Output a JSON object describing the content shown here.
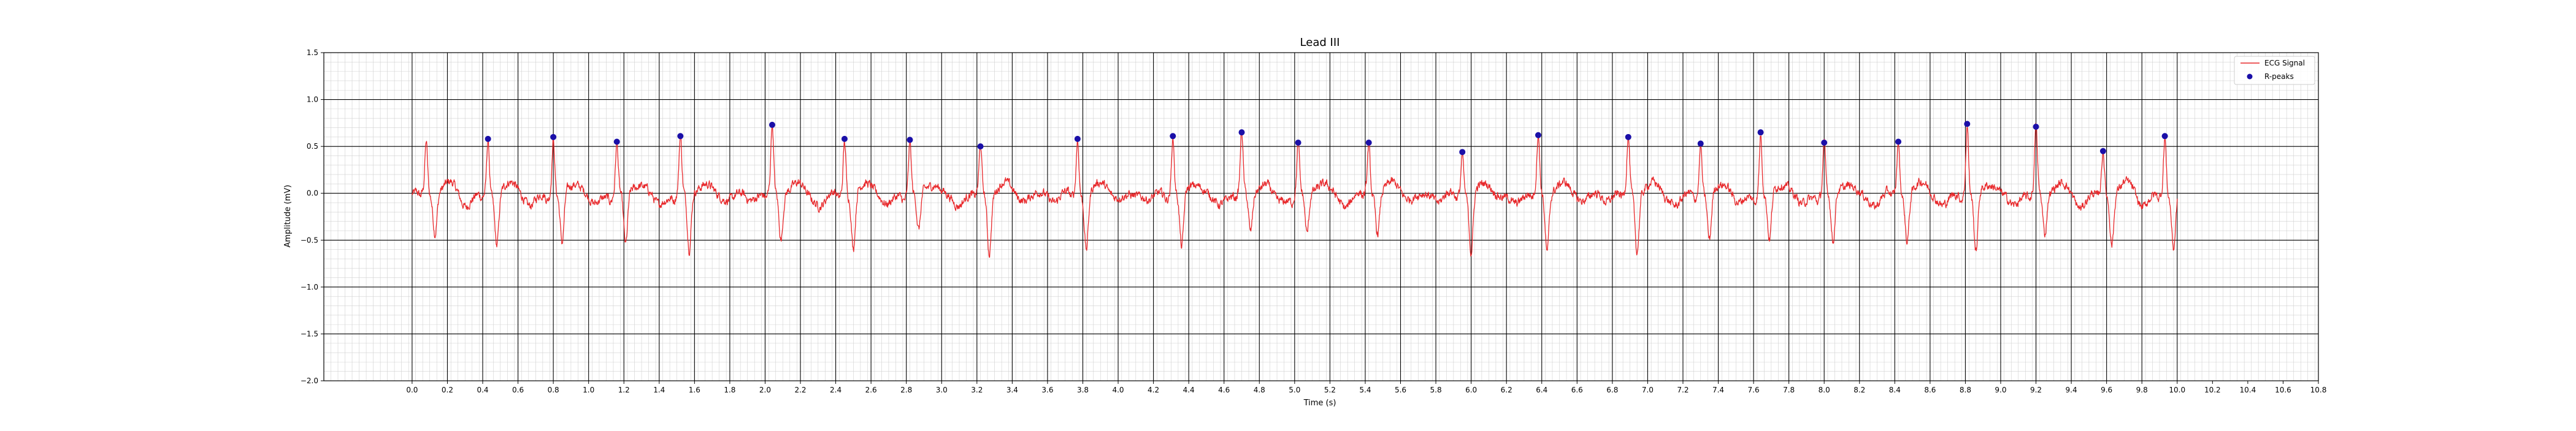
{
  "chart_data": {
    "type": "line",
    "title": "Lead III",
    "xlabel": "Time (s)",
    "ylabel": "Amplitude (mV)",
    "xlim": [
      -0.5,
      10.8
    ],
    "ylim": [
      -2.0,
      1.5
    ],
    "xticks": [
      0.0,
      0.2,
      0.4,
      0.6,
      0.8,
      1.0,
      1.2,
      1.4,
      1.6,
      1.8,
      2.0,
      2.2,
      2.4,
      2.6,
      2.8,
      3.0,
      3.2,
      3.4,
      3.6,
      3.8,
      4.0,
      4.2,
      4.4,
      4.6,
      4.8,
      5.0,
      5.2,
      5.4,
      5.6,
      5.8,
      6.0,
      6.2,
      6.4,
      6.6,
      6.8,
      7.0,
      7.2,
      7.4,
      7.6,
      7.8,
      8.0,
      8.2,
      8.4,
      8.6,
      8.8,
      9.0,
      9.2,
      9.4,
      9.6,
      9.8,
      10.0,
      10.2,
      10.4,
      10.6,
      10.8
    ],
    "xtick_labels": [
      "0.0",
      "0.2",
      "0.4",
      "0.6",
      "0.8",
      "1.0",
      "1.2",
      "1.4",
      "1.6",
      "1.8",
      "2.0",
      "2.2",
      "2.4",
      "2.6",
      "2.8",
      "3.0",
      "3.2",
      "3.4",
      "3.6",
      "3.8",
      "4.0",
      "4.2",
      "4.4",
      "4.6",
      "4.8",
      "5.0",
      "5.2",
      "5.4",
      "5.6",
      "5.8",
      "6.0",
      "6.2",
      "6.4",
      "6.6",
      "6.8",
      "7.0",
      "7.2",
      "7.4",
      "7.6",
      "7.8",
      "8.0",
      "8.2",
      "8.4",
      "8.6",
      "8.8",
      "9.0",
      "9.2",
      "9.4",
      "9.6",
      "9.8",
      "10.0",
      "10.2",
      "10.4",
      "10.6",
      "10.8"
    ],
    "yticks": [
      -2.0,
      -1.5,
      -1.0,
      -0.5,
      0.0,
      0.5,
      1.0,
      1.5
    ],
    "ytick_labels": [
      "−2.0",
      "−1.5",
      "−1.0",
      "−0.5",
      "0.0",
      "0.5",
      "1.0",
      "1.5"
    ],
    "grid": true,
    "major_grid_x": [
      0.0,
      0.2,
      0.4,
      0.6,
      0.8,
      1.0,
      1.2,
      1.4,
      1.6,
      1.8,
      2.0,
      2.2,
      2.4,
      2.6,
      2.8,
      3.0,
      3.2,
      3.4,
      3.6,
      3.8,
      4.0,
      4.2,
      4.4,
      4.6,
      4.8,
      5.0,
      5.2,
      5.4,
      5.6,
      5.8,
      6.0,
      6.2,
      6.4,
      6.6,
      6.8,
      7.0,
      7.2,
      7.4,
      7.6,
      7.8,
      8.0,
      8.2,
      8.4,
      8.6,
      8.8,
      9.0,
      9.2,
      9.4,
      9.6,
      9.8,
      10.0
    ],
    "major_grid_y": [
      -2.0,
      -1.5,
      -1.0,
      -0.5,
      0.0,
      0.5,
      1.0,
      1.5
    ],
    "minor_grid_x_step": 0.04,
    "minor_grid_y_step": 0.1,
    "legend": {
      "position": "top-right",
      "entries": [
        "ECG Signal",
        "R-peaks"
      ]
    },
    "colors": {
      "signal": "#e8282b",
      "peaks": "#1a0fa8",
      "major_grid": "#000000",
      "minor_grid": "#d0d0d0"
    },
    "series": [
      {
        "name": "ECG Signal",
        "kind": "line",
        "signal_start": 0.0,
        "signal_end": 10.0,
        "beats": [
          {
            "r": 0.08,
            "amp": 0.55,
            "s": -0.42
          },
          {
            "r": 0.43,
            "amp": 0.58,
            "s": -0.55
          },
          {
            "r": 0.8,
            "amp": 0.6,
            "s": -0.55
          },
          {
            "r": 1.16,
            "amp": 0.55,
            "s": -0.58
          },
          {
            "r": 1.52,
            "amp": 0.61,
            "s": -0.62
          },
          {
            "r": 2.04,
            "amp": 0.73,
            "s": -0.5
          },
          {
            "r": 2.45,
            "amp": 0.58,
            "s": -0.6
          },
          {
            "r": 2.82,
            "amp": 0.57,
            "s": -0.42
          },
          {
            "r": 3.22,
            "amp": 0.5,
            "s": -0.64
          },
          {
            "r": 3.77,
            "amp": 0.58,
            "s": -0.6
          },
          {
            "r": 4.31,
            "amp": 0.61,
            "s": -0.6
          },
          {
            "r": 4.7,
            "amp": 0.65,
            "s": -0.42
          },
          {
            "r": 5.02,
            "amp": 0.54,
            "s": -0.45
          },
          {
            "r": 5.42,
            "amp": 0.54,
            "s": -0.42
          },
          {
            "r": 5.95,
            "amp": 0.44,
            "s": -0.64
          },
          {
            "r": 6.38,
            "amp": 0.62,
            "s": -0.62
          },
          {
            "r": 6.89,
            "amp": 0.6,
            "s": -0.62
          },
          {
            "r": 7.3,
            "amp": 0.53,
            "s": -0.52
          },
          {
            "r": 7.64,
            "amp": 0.65,
            "s": -0.52
          },
          {
            "r": 8.0,
            "amp": 0.54,
            "s": -0.55
          },
          {
            "r": 8.42,
            "amp": 0.55,
            "s": -0.5
          },
          {
            "r": 8.81,
            "amp": 0.74,
            "s": -0.65
          },
          {
            "r": 9.2,
            "amp": 0.71,
            "s": -0.45
          },
          {
            "r": 9.58,
            "amp": 0.45,
            "s": -0.53
          },
          {
            "r": 9.93,
            "amp": 0.61,
            "s": -0.58
          }
        ]
      },
      {
        "name": "R-peaks",
        "kind": "scatter",
        "x": [
          0.43,
          0.8,
          1.16,
          1.52,
          2.04,
          2.45,
          2.82,
          3.22,
          3.77,
          4.31,
          4.7,
          5.02,
          5.42,
          5.95,
          6.38,
          6.89,
          7.3,
          7.64,
          8.0,
          8.42,
          8.81,
          9.2,
          9.58,
          9.93
        ],
        "y": [
          0.58,
          0.6,
          0.55,
          0.61,
          0.73,
          0.58,
          0.57,
          0.5,
          0.58,
          0.61,
          0.65,
          0.54,
          0.54,
          0.44,
          0.62,
          0.6,
          0.53,
          0.65,
          0.54,
          0.55,
          0.74,
          0.71,
          0.45,
          0.61
        ]
      }
    ]
  }
}
